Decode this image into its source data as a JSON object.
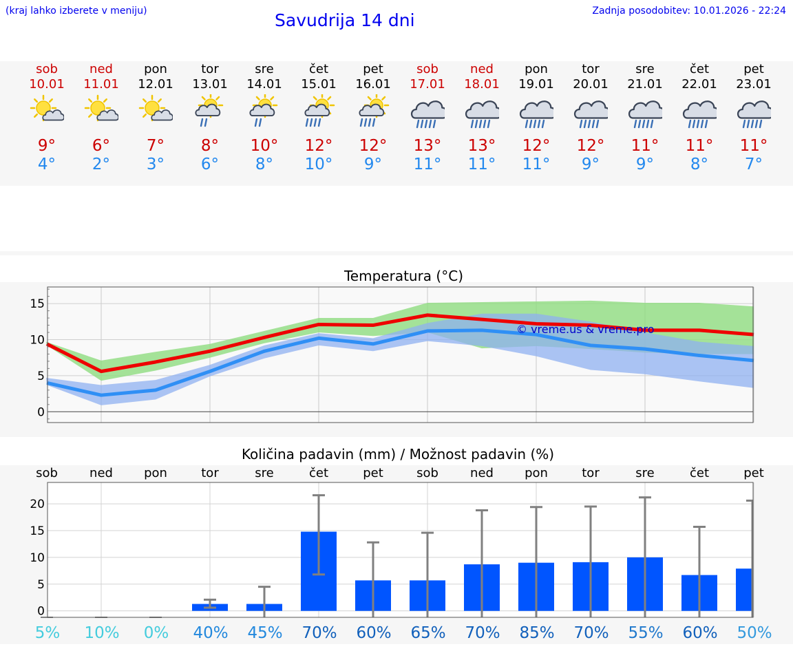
{
  "header": {
    "hint": "(kraj lahko izberete v meniju)",
    "title": "Savudrija 14 dni",
    "updated": "Zadnja posodobitev: 10.01.2026 - 22:24"
  },
  "colors": {
    "max": "#ee0000",
    "min": "#2f8ff5",
    "band_max": "#8fdc7f",
    "band_min": "#8fb0f0",
    "bar": "#0055ff",
    "err": "#808080"
  },
  "days": [
    {
      "name": "sob",
      "date": "10.01",
      "max": "9°",
      "min": "4°",
      "icon": "sun-cloud-icon",
      "weekend": true
    },
    {
      "name": "ned",
      "date": "11.01",
      "max": "6°",
      "min": "2°",
      "icon": "sun-cloud-icon",
      "weekend": true
    },
    {
      "name": "pon",
      "date": "12.01",
      "max": "7°",
      "min": "3°",
      "icon": "sun-cloud-icon",
      "weekend": false
    },
    {
      "name": "tor",
      "date": "13.01",
      "max": "8°",
      "min": "6°",
      "icon": "sun-cloud-light-rain-icon",
      "weekend": false
    },
    {
      "name": "sre",
      "date": "14.01",
      "max": "10°",
      "min": "8°",
      "icon": "sun-cloud-light-rain-icon",
      "weekend": false
    },
    {
      "name": "čet",
      "date": "15.01",
      "max": "12°",
      "min": "10°",
      "icon": "sun-cloud-rain-icon",
      "weekend": false
    },
    {
      "name": "pet",
      "date": "16.01",
      "max": "12°",
      "min": "9°",
      "icon": "sun-cloud-rain-icon",
      "weekend": false
    },
    {
      "name": "sob",
      "date": "17.01",
      "max": "13°",
      "min": "11°",
      "icon": "cloud-rain-icon",
      "weekend": true
    },
    {
      "name": "ned",
      "date": "18.01",
      "max": "13°",
      "min": "11°",
      "icon": "cloud-rain-icon",
      "weekend": true
    },
    {
      "name": "pon",
      "date": "19.01",
      "max": "12°",
      "min": "11°",
      "icon": "cloud-rain-icon",
      "weekend": false
    },
    {
      "name": "tor",
      "date": "20.01",
      "max": "12°",
      "min": "9°",
      "icon": "cloud-rain-icon",
      "weekend": false
    },
    {
      "name": "sre",
      "date": "21.01",
      "max": "11°",
      "min": "9°",
      "icon": "cloud-rain-icon",
      "weekend": false
    },
    {
      "name": "čet",
      "date": "22.01",
      "max": "11°",
      "min": "8°",
      "icon": "cloud-rain-icon",
      "weekend": false
    },
    {
      "name": "pet",
      "date": "23.01",
      "max": "11°",
      "min": "7°",
      "icon": "cloud-rain-icon",
      "weekend": false
    }
  ],
  "chart_data": [
    {
      "type": "line",
      "title": "Temperatura (°C)",
      "ylim": [
        -1.5,
        17.3
      ],
      "yticks": [
        "0",
        "5",
        "10",
        "15"
      ],
      "watermark": "© vreme.us & vreme.pro",
      "series": [
        {
          "name": "max",
          "values": [
            9.4,
            5.6,
            6.9,
            8.4,
            10.3,
            12.1,
            12.0,
            13.4,
            12.8,
            12.2,
            12.0,
            11.3,
            11.3,
            10.7
          ],
          "band_upper": [
            9.7,
            7.1,
            8.3,
            9.4,
            11.2,
            13.0,
            13.0,
            15.1,
            15.2,
            15.3,
            15.4,
            15.1,
            15.1,
            14.6
          ],
          "band_lower": [
            9.2,
            4.3,
            5.7,
            7.5,
            9.5,
            11.0,
            10.5,
            11.0,
            8.8,
            9.1,
            8.7,
            8.2,
            8.0,
            8.0
          ]
        },
        {
          "name": "min",
          "values": [
            4.0,
            2.3,
            3.0,
            5.6,
            8.4,
            10.2,
            9.4,
            11.2,
            11.3,
            10.7,
            9.2,
            8.7,
            7.8,
            7.1
          ],
          "band_upper": [
            4.7,
            3.7,
            4.4,
            6.5,
            9.2,
            10.9,
            10.2,
            12.3,
            13.6,
            13.6,
            12.5,
            11.0,
            9.7,
            9.1
          ],
          "band_lower": [
            3.7,
            0.9,
            1.7,
            4.9,
            7.4,
            9.2,
            8.4,
            9.8,
            9.1,
            7.7,
            5.8,
            5.2,
            4.2,
            3.3
          ]
        }
      ]
    },
    {
      "type": "bar",
      "title": "Količina padavin (mm) / Možnost padavin (%)",
      "ylim": [
        -1.2,
        24
      ],
      "yticks": [
        "0",
        "5",
        "10",
        "15",
        "20"
      ],
      "categories": [
        "sob",
        "ned",
        "pon",
        "tor",
        "sre",
        "čet",
        "pet",
        "sob",
        "ned",
        "pon",
        "tor",
        "sre",
        "čet",
        "pet"
      ],
      "values": [
        0,
        0,
        0,
        1.3,
        1.3,
        14.8,
        5.7,
        5.7,
        8.7,
        9.0,
        9.1,
        10.0,
        6.7,
        7.9
      ],
      "err_high": [
        0,
        0,
        0,
        2.1,
        4.5,
        21.6,
        12.8,
        14.6,
        18.8,
        19.4,
        19.5,
        21.2,
        15.7,
        20.6
      ],
      "err_low": [
        0,
        0,
        0,
        0.6,
        0,
        6.8,
        0,
        0,
        0,
        0,
        0,
        0,
        0,
        0
      ],
      "chance": [
        "5%",
        "10%",
        "0%",
        "40%",
        "45%",
        "70%",
        "60%",
        "65%",
        "70%",
        "85%",
        "70%",
        "55%",
        "60%",
        "50%"
      ],
      "chance_colors": [
        "#44ccdd",
        "#44ccdd",
        "#44ccdd",
        "#2288dd",
        "#2288dd",
        "#1160bb",
        "#1160bb",
        "#1160bb",
        "#1160bb",
        "#1160bb",
        "#1160bb",
        "#1f78cc",
        "#1160bb",
        "#3399dd"
      ]
    }
  ]
}
